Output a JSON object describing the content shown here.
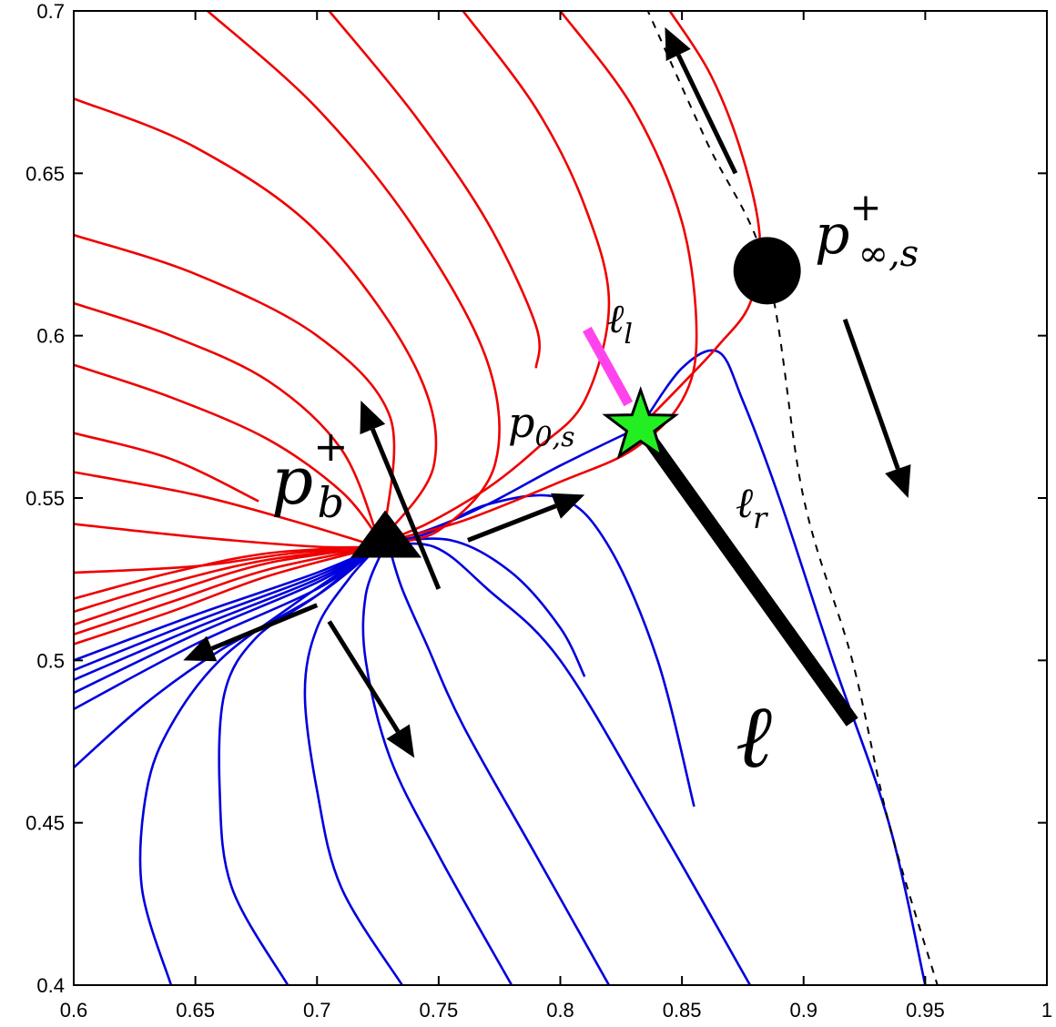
{
  "chart_data": {
    "type": "line",
    "title": "",
    "xlabel": "",
    "ylabel": "",
    "xlim": [
      0.6,
      1.0
    ],
    "ylim": [
      0.4,
      0.7
    ],
    "grid": false,
    "x_ticks": [
      {
        "value": 0.6,
        "label": "0.6"
      },
      {
        "value": 0.65,
        "label": "0.65"
      },
      {
        "value": 0.7,
        "label": "0.7"
      },
      {
        "value": 0.75,
        "label": "0.75"
      },
      {
        "value": 0.8,
        "label": "0.8"
      },
      {
        "value": 0.85,
        "label": "0.85"
      },
      {
        "value": 0.9,
        "label": "0.9"
      },
      {
        "value": 0.95,
        "label": "0.95"
      },
      {
        "value": 1.0,
        "label": "1"
      }
    ],
    "y_ticks": [
      {
        "value": 0.4,
        "label": "0.4"
      },
      {
        "value": 0.45,
        "label": "0.45"
      },
      {
        "value": 0.5,
        "label": "0.5"
      },
      {
        "value": 0.55,
        "label": "0.55"
      },
      {
        "value": 0.6,
        "label": "0.6"
      },
      {
        "value": 0.65,
        "label": "0.65"
      },
      {
        "value": 0.7,
        "label": "0.7"
      }
    ],
    "colors": {
      "red": "#ee0000",
      "blue": "#0000dd",
      "magenta": "#ff44ee",
      "green": "#22ee22",
      "black": "#000000"
    },
    "red_curves": [
      [
        [
          0.6,
          0.505
        ],
        [
          0.64,
          0.515
        ],
        [
          0.68,
          0.526
        ],
        [
          0.725,
          0.535
        ]
      ],
      [
        [
          0.6,
          0.508
        ],
        [
          0.64,
          0.518
        ],
        [
          0.68,
          0.528
        ],
        [
          0.725,
          0.535
        ]
      ],
      [
        [
          0.6,
          0.511
        ],
        [
          0.64,
          0.521
        ],
        [
          0.68,
          0.53
        ],
        [
          0.725,
          0.535
        ]
      ],
      [
        [
          0.6,
          0.515
        ],
        [
          0.64,
          0.524
        ],
        [
          0.68,
          0.531
        ],
        [
          0.725,
          0.535
        ]
      ],
      [
        [
          0.6,
          0.519
        ],
        [
          0.64,
          0.527
        ],
        [
          0.68,
          0.533
        ],
        [
          0.725,
          0.535
        ]
      ],
      [
        [
          0.6,
          0.527
        ],
        [
          0.65,
          0.529
        ],
        [
          0.69,
          0.533
        ],
        [
          0.725,
          0.535
        ]
      ],
      [
        [
          0.6,
          0.542
        ],
        [
          0.65,
          0.538
        ],
        [
          0.7,
          0.535
        ],
        [
          0.725,
          0.535
        ]
      ],
      [
        [
          0.6,
          0.558
        ],
        [
          0.65,
          0.551
        ],
        [
          0.69,
          0.543
        ],
        [
          0.725,
          0.535
        ]
      ],
      [
        [
          0.6,
          0.57
        ],
        [
          0.64,
          0.562
        ],
        [
          0.676,
          0.549
        ]
      ],
      [
        [
          0.6,
          0.591
        ],
        [
          0.64,
          0.581
        ],
        [
          0.68,
          0.568
        ],
        [
          0.71,
          0.552
        ],
        [
          0.725,
          0.538
        ]
      ],
      [
        [
          0.6,
          0.61
        ],
        [
          0.64,
          0.6
        ],
        [
          0.68,
          0.586
        ],
        [
          0.71,
          0.565
        ],
        [
          0.725,
          0.538
        ]
      ],
      [
        [
          0.6,
          0.631
        ],
        [
          0.65,
          0.619
        ],
        [
          0.7,
          0.6
        ],
        [
          0.73,
          0.575
        ],
        [
          0.728,
          0.541
        ]
      ],
      [
        [
          0.6,
          0.673
        ],
        [
          0.65,
          0.658
        ],
        [
          0.7,
          0.632
        ],
        [
          0.74,
          0.591
        ],
        [
          0.748,
          0.56
        ],
        [
          0.725,
          0.536
        ]
      ],
      [
        [
          0.655,
          0.7
        ],
        [
          0.7,
          0.67
        ],
        [
          0.74,
          0.633
        ],
        [
          0.77,
          0.592
        ],
        [
          0.773,
          0.56
        ],
        [
          0.75,
          0.54
        ],
        [
          0.725,
          0.536
        ]
      ],
      [
        [
          0.705,
          0.7
        ],
        [
          0.74,
          0.668
        ],
        [
          0.77,
          0.635
        ],
        [
          0.79,
          0.603
        ],
        [
          0.79,
          0.59
        ]
      ],
      [
        [
          0.76,
          0.7
        ],
        [
          0.79,
          0.67
        ],
        [
          0.81,
          0.64
        ],
        [
          0.82,
          0.61
        ],
        [
          0.81,
          0.58
        ],
        [
          0.79,
          0.565
        ],
        [
          0.77,
          0.553
        ],
        [
          0.745,
          0.542
        ],
        [
          0.725,
          0.536
        ]
      ],
      [
        [
          0.8,
          0.7
        ],
        [
          0.83,
          0.67
        ],
        [
          0.85,
          0.635
        ],
        [
          0.856,
          0.6
        ],
        [
          0.85,
          0.58
        ],
        [
          0.83,
          0.565
        ],
        [
          0.8,
          0.555
        ],
        [
          0.76,
          0.543
        ],
        [
          0.725,
          0.536
        ]
      ],
      [
        [
          0.845,
          0.7
        ],
        [
          0.862,
          0.68
        ],
        [
          0.875,
          0.655
        ],
        [
          0.882,
          0.63
        ],
        [
          0.878,
          0.61
        ],
        [
          0.865,
          0.597
        ],
        [
          0.85,
          0.585
        ],
        [
          0.833,
          0.572
        ]
      ]
    ],
    "blue_curves": [
      [
        [
          0.6,
          0.5
        ],
        [
          0.65,
          0.514
        ],
        [
          0.7,
          0.527
        ],
        [
          0.725,
          0.535
        ]
      ],
      [
        [
          0.6,
          0.497
        ],
        [
          0.65,
          0.512
        ],
        [
          0.7,
          0.526
        ],
        [
          0.725,
          0.535
        ]
      ],
      [
        [
          0.6,
          0.494
        ],
        [
          0.65,
          0.51
        ],
        [
          0.7,
          0.525
        ],
        [
          0.725,
          0.535
        ]
      ],
      [
        [
          0.6,
          0.49
        ],
        [
          0.65,
          0.508
        ],
        [
          0.7,
          0.524
        ],
        [
          0.725,
          0.535
        ]
      ],
      [
        [
          0.6,
          0.485
        ],
        [
          0.65,
          0.505
        ],
        [
          0.7,
          0.522
        ],
        [
          0.725,
          0.535
        ]
      ],
      [
        [
          0.6,
          0.467
        ],
        [
          0.63,
          0.487
        ],
        [
          0.66,
          0.503
        ],
        [
          0.7,
          0.52
        ],
        [
          0.725,
          0.535
        ]
      ],
      [
        [
          0.64,
          0.4
        ],
        [
          0.628,
          0.43
        ],
        [
          0.63,
          0.46
        ],
        [
          0.64,
          0.48
        ],
        [
          0.66,
          0.5
        ],
        [
          0.69,
          0.517
        ],
        [
          0.725,
          0.535
        ]
      ],
      [
        [
          0.688,
          0.4
        ],
        [
          0.665,
          0.43
        ],
        [
          0.66,
          0.46
        ],
        [
          0.662,
          0.49
        ],
        [
          0.675,
          0.507
        ],
        [
          0.7,
          0.52
        ],
        [
          0.725,
          0.535
        ]
      ],
      [
        [
          0.735,
          0.4
        ],
        [
          0.71,
          0.43
        ],
        [
          0.7,
          0.46
        ],
        [
          0.695,
          0.49
        ],
        [
          0.7,
          0.51
        ],
        [
          0.713,
          0.525
        ],
        [
          0.725,
          0.535
        ]
      ],
      [
        [
          0.78,
          0.4
        ],
        [
          0.75,
          0.44
        ],
        [
          0.73,
          0.47
        ],
        [
          0.72,
          0.5
        ],
        [
          0.72,
          0.52
        ],
        [
          0.727,
          0.534
        ]
      ],
      [
        [
          0.82,
          0.4
        ],
        [
          0.79,
          0.44
        ],
        [
          0.76,
          0.48
        ],
        [
          0.745,
          0.505
        ],
        [
          0.735,
          0.522
        ],
        [
          0.73,
          0.534
        ]
      ],
      [
        [
          0.878,
          0.4
        ],
        [
          0.84,
          0.45
        ],
        [
          0.8,
          0.5
        ],
        [
          0.77,
          0.522
        ],
        [
          0.748,
          0.535
        ],
        [
          0.725,
          0.535
        ]
      ],
      [
        [
          0.81,
          0.495
        ],
        [
          0.8,
          0.51
        ],
        [
          0.78,
          0.527
        ],
        [
          0.755,
          0.537
        ],
        [
          0.725,
          0.536
        ]
      ],
      [
        [
          0.855,
          0.455
        ],
        [
          0.84,
          0.5
        ],
        [
          0.82,
          0.535
        ],
        [
          0.8,
          0.55
        ],
        [
          0.77,
          0.548
        ],
        [
          0.745,
          0.539
        ],
        [
          0.725,
          0.536
        ]
      ],
      [
        [
          0.95,
          0.4
        ],
        [
          0.935,
          0.45
        ],
        [
          0.912,
          0.5
        ],
        [
          0.89,
          0.55
        ],
        [
          0.875,
          0.58
        ],
        [
          0.865,
          0.595
        ],
        [
          0.85,
          0.59
        ],
        [
          0.833,
          0.572
        ]
      ],
      [
        [
          0.833,
          0.572
        ],
        [
          0.8,
          0.56
        ],
        [
          0.77,
          0.548
        ],
        [
          0.745,
          0.54
        ],
        [
          0.725,
          0.536
        ]
      ]
    ],
    "dashed_curve": [
      [
        0.833,
        0.705
      ],
      [
        0.86,
        0.66
      ],
      [
        0.885,
        0.62
      ],
      [
        0.9,
        0.55
      ],
      [
        0.92,
        0.5
      ],
      [
        0.935,
        0.45
      ],
      [
        0.955,
        0.4
      ]
    ],
    "segment_ell": [
      [
        0.833,
        0.572
      ],
      [
        0.92,
        0.481
      ]
    ],
    "segment_ell_l": [
      [
        0.811,
        0.602
      ],
      [
        0.828,
        0.579
      ]
    ],
    "arrows": [
      [
        [
          0.872,
          0.65
        ],
        [
          0.843,
          0.695
        ]
      ],
      [
        [
          0.917,
          0.605
        ],
        [
          0.943,
          0.55
        ]
      ],
      [
        [
          0.75,
          0.522
        ],
        [
          0.718,
          0.58
        ]
      ],
      [
        [
          0.762,
          0.537
        ],
        [
          0.81,
          0.551
        ]
      ],
      [
        [
          0.7,
          0.517
        ],
        [
          0.645,
          0.5
        ]
      ],
      [
        [
          0.705,
          0.512
        ],
        [
          0.74,
          0.47
        ]
      ]
    ],
    "points": {
      "p_b_plus": {
        "x": 0.725,
        "y": 0.535,
        "marker": "triangle"
      },
      "p_0_s": {
        "x": 0.833,
        "y": 0.572,
        "marker": "star"
      },
      "p_inf_s_plus": {
        "x": 0.885,
        "y": 0.62,
        "marker": "circle"
      }
    },
    "annotations": {
      "ell_l": {
        "text": "ℓ",
        "sub": "l"
      },
      "p0s": {
        "text": "p",
        "sub": "0,s"
      },
      "ell_r": {
        "text": "ℓ",
        "sub": "r"
      },
      "ell": {
        "text": "ℓ"
      },
      "pb": {
        "text": "p",
        "sub": "b",
        "sup": "+"
      },
      "pinf": {
        "text": "p",
        "sub": "∞,s",
        "sup": "+"
      }
    }
  }
}
